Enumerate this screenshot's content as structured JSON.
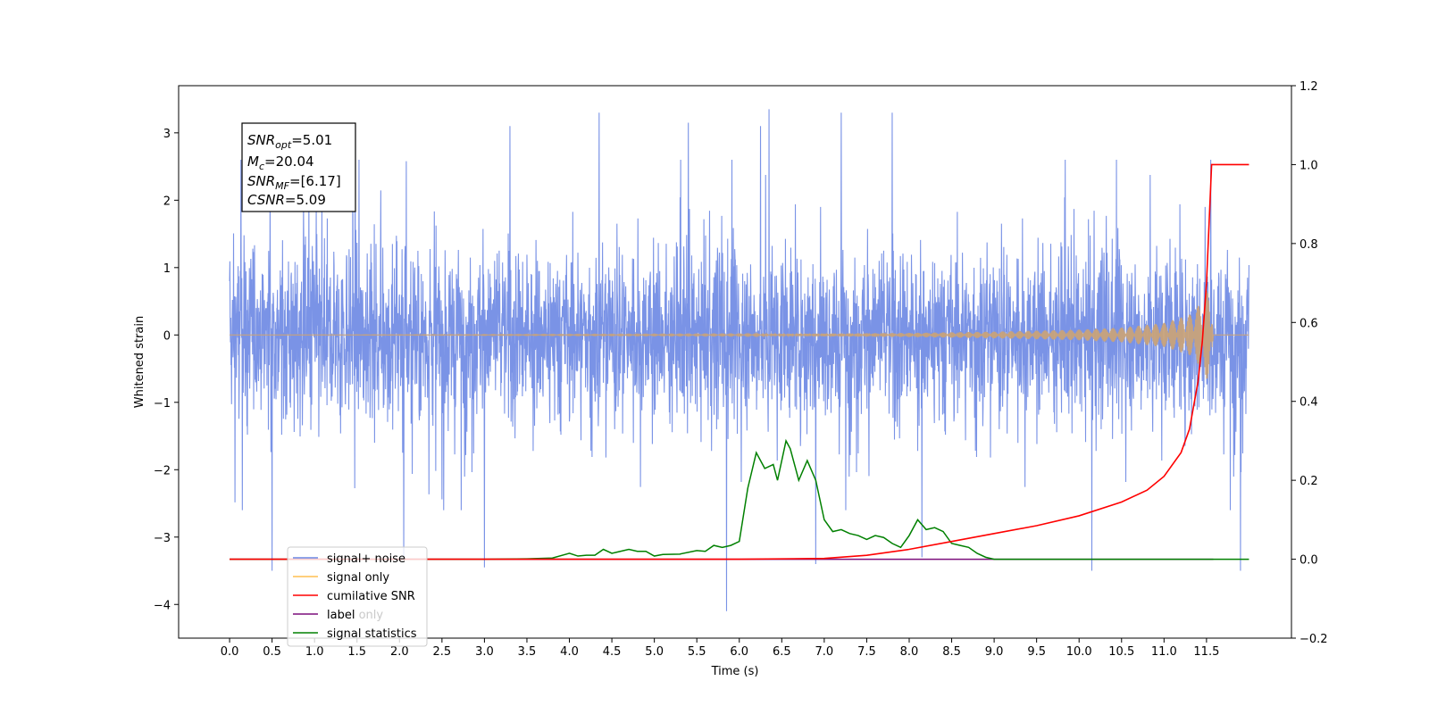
{
  "chart_data": {
    "type": "line",
    "title": "",
    "xlabel": "Time (s)",
    "ylabel": "Whitened strain",
    "y2label": "",
    "xlim": [
      -0.6,
      12.5
    ],
    "ylim": [
      -4.5,
      3.7
    ],
    "y2lim": [
      -0.2,
      1.2
    ],
    "grid": false,
    "legend_position": "lower-left",
    "xticks": [
      "0.0",
      "0.5",
      "1.0",
      "1.5",
      "2.0",
      "2.5",
      "3.0",
      "3.5",
      "4.0",
      "4.5",
      "5.0",
      "5.5",
      "6.0",
      "6.5",
      "7.0",
      "7.5",
      "8.0",
      "8.5",
      "9.0",
      "9.5",
      "10.0",
      "10.5",
      "11.0",
      "11.5"
    ],
    "yticks": [
      "3",
      "2",
      "1",
      "0",
      "−1",
      "−2",
      "−3",
      "−4"
    ],
    "y2ticks": [
      "1.2",
      "1.0",
      "0.8",
      "0.6",
      "0.4",
      "0.2",
      "0.0",
      "−0.2"
    ],
    "annotation": {
      "snr_opt": {
        "base": "SNR",
        "sub": "opt",
        "value": "=5.01"
      },
      "mc": {
        "base": "M",
        "sub": "c",
        "value": "=20.04"
      },
      "snr_mf": {
        "base": "SNR",
        "sub": "MF",
        "value": "=[6.17]"
      },
      "csnr": {
        "base": "CSNR",
        "sub": "",
        "value": "=5.09"
      }
    },
    "series": [
      {
        "name": "signal+ noise",
        "color": "#6b87e3",
        "axis": "left",
        "x_range": [
          0.0,
          12.0
        ],
        "typical_band": [
          -1.5,
          1.5
        ],
        "notable_extremes": [
          {
            "x": 0.5,
            "y": -3.5
          },
          {
            "x": 1.45,
            "y": 3.1
          },
          {
            "x": 2.05,
            "y": -3.3
          },
          {
            "x": 3.0,
            "y": -3.45
          },
          {
            "x": 3.3,
            "y": 3.1
          },
          {
            "x": 4.35,
            "y": 3.3
          },
          {
            "x": 5.4,
            "y": 3.15
          },
          {
            "x": 5.85,
            "y": -4.1
          },
          {
            "x": 6.25,
            "y": 3.1
          },
          {
            "x": 6.35,
            "y": 3.35
          },
          {
            "x": 6.9,
            "y": -3.4
          },
          {
            "x": 7.2,
            "y": 3.3
          },
          {
            "x": 7.8,
            "y": 3.3
          },
          {
            "x": 8.15,
            "y": -3.3
          },
          {
            "x": 10.15,
            "y": -3.5
          },
          {
            "x": 11.55,
            "y": 2.6
          },
          {
            "x": 11.9,
            "y": -3.5
          }
        ]
      },
      {
        "name": "signal only",
        "color": "#c8a27a",
        "axis": "left",
        "envelope": [
          {
            "x": 0.0,
            "amp": 0.0
          },
          {
            "x": 6.0,
            "amp": 0.01
          },
          {
            "x": 8.0,
            "amp": 0.03
          },
          {
            "x": 9.0,
            "amp": 0.05
          },
          {
            "x": 10.0,
            "amp": 0.08
          },
          {
            "x": 10.5,
            "amp": 0.11
          },
          {
            "x": 11.0,
            "amp": 0.18
          },
          {
            "x": 11.3,
            "amp": 0.3
          },
          {
            "x": 11.45,
            "amp": 0.5
          },
          {
            "x": 11.55,
            "amp": 0.8
          },
          {
            "x": 11.58,
            "amp": 0.0
          },
          {
            "x": 12.0,
            "amp": 0.0
          }
        ]
      },
      {
        "name": "cumilative SNR",
        "color": "#ff0000",
        "axis": "right",
        "points": [
          [
            0.0,
            0.0
          ],
          [
            6.0,
            0.0
          ],
          [
            7.0,
            0.002
          ],
          [
            7.5,
            0.01
          ],
          [
            8.0,
            0.025
          ],
          [
            8.5,
            0.045
          ],
          [
            9.0,
            0.065
          ],
          [
            9.5,
            0.085
          ],
          [
            10.0,
            0.11
          ],
          [
            10.5,
            0.145
          ],
          [
            10.8,
            0.175
          ],
          [
            11.0,
            0.21
          ],
          [
            11.2,
            0.27
          ],
          [
            11.3,
            0.33
          ],
          [
            11.4,
            0.45
          ],
          [
            11.45,
            0.55
          ],
          [
            11.5,
            0.7
          ],
          [
            11.53,
            0.85
          ],
          [
            11.56,
            1.0
          ],
          [
            12.0,
            1.0
          ]
        ]
      },
      {
        "name": "label",
        "color": "#7b0f7b",
        "axis": "right",
        "points": [
          [
            0.0,
            0.0
          ],
          [
            11.58,
            0.0
          ]
        ]
      },
      {
        "name": "label only",
        "color": "#c9c9c9",
        "axis": "right",
        "points": []
      },
      {
        "name": "signal statistics",
        "color": "#008000",
        "axis": "right",
        "points": [
          [
            0.0,
            0.0
          ],
          [
            3.0,
            0.0
          ],
          [
            3.5,
            0.001
          ],
          [
            3.8,
            0.003
          ],
          [
            4.0,
            0.015
          ],
          [
            4.1,
            0.008
          ],
          [
            4.2,
            0.01
          ],
          [
            4.3,
            0.01
          ],
          [
            4.4,
            0.025
          ],
          [
            4.5,
            0.015
          ],
          [
            4.6,
            0.02
          ],
          [
            4.7,
            0.025
          ],
          [
            4.8,
            0.02
          ],
          [
            4.9,
            0.02
          ],
          [
            5.0,
            0.008
          ],
          [
            5.1,
            0.012
          ],
          [
            5.3,
            0.013
          ],
          [
            5.5,
            0.022
          ],
          [
            5.6,
            0.02
          ],
          [
            5.7,
            0.035
          ],
          [
            5.8,
            0.03
          ],
          [
            5.9,
            0.035
          ],
          [
            6.0,
            0.045
          ],
          [
            6.1,
            0.18
          ],
          [
            6.2,
            0.27
          ],
          [
            6.3,
            0.23
          ],
          [
            6.4,
            0.24
          ],
          [
            6.45,
            0.2
          ],
          [
            6.55,
            0.3
          ],
          [
            6.6,
            0.28
          ],
          [
            6.7,
            0.2
          ],
          [
            6.8,
            0.25
          ],
          [
            6.9,
            0.2
          ],
          [
            7.0,
            0.1
          ],
          [
            7.1,
            0.07
          ],
          [
            7.2,
            0.075
          ],
          [
            7.3,
            0.065
          ],
          [
            7.4,
            0.06
          ],
          [
            7.5,
            0.05
          ],
          [
            7.6,
            0.06
          ],
          [
            7.7,
            0.055
          ],
          [
            7.8,
            0.04
          ],
          [
            7.9,
            0.03
          ],
          [
            8.0,
            0.06
          ],
          [
            8.1,
            0.1
          ],
          [
            8.2,
            0.075
          ],
          [
            8.3,
            0.08
          ],
          [
            8.4,
            0.07
          ],
          [
            8.5,
            0.04
          ],
          [
            8.6,
            0.035
          ],
          [
            8.7,
            0.03
          ],
          [
            8.8,
            0.015
          ],
          [
            8.9,
            0.005
          ],
          [
            9.0,
            0.0
          ],
          [
            12.0,
            0.0
          ]
        ]
      }
    ]
  },
  "legend": [
    {
      "label": "signal+ noise",
      "color": "#6b87e3"
    },
    {
      "label": "signal only",
      "color": "#ffbf50"
    },
    {
      "label": "cumilative SNR",
      "color": "#ff0000"
    },
    {
      "label": "label",
      "color": "#7b0f7b"
    },
    {
      "label": "label only",
      "color": "#c9c9c9"
    },
    {
      "label": "signal statistics",
      "color": "#008000"
    }
  ]
}
